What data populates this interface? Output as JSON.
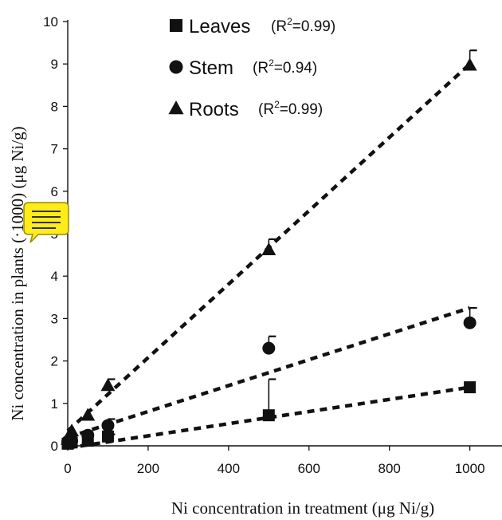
{
  "chart_data": {
    "type": "scatter",
    "xlabel": "Ni concentration in treatment (μg Ni/g)",
    "ylabel": "Ni concentration in plants (·1000) (μg Ni/g)",
    "xlim": [
      0,
      1080
    ],
    "ylim": [
      0,
      10
    ],
    "x_ticks": [
      "0",
      "200",
      "400",
      "600",
      "800",
      "1000"
    ],
    "y_ticks": [
      "0",
      "1",
      "2",
      "3",
      "4",
      "5",
      "6",
      "7",
      "8",
      "9",
      "10"
    ],
    "x_tick_values": [
      0,
      200,
      400,
      600,
      800,
      1000
    ],
    "y_tick_values": [
      0,
      1,
      2,
      3,
      4,
      5,
      6,
      7,
      8,
      9,
      10
    ],
    "legend_position": "top-right",
    "series": [
      {
        "name": "Leaves",
        "r2_prefix": "(R",
        "r2_suffix": "=0.99)",
        "marker": "square",
        "x": [
          0,
          10,
          50,
          100,
          500,
          1000
        ],
        "y": [
          0.05,
          0.08,
          0.12,
          0.22,
          0.72,
          1.38
        ],
        "err": [
          0,
          0,
          0,
          0.05,
          0.85,
          0
        ],
        "fit": [
          [
            0,
            -0.05
          ],
          [
            1000,
            1.38
          ]
        ]
      },
      {
        "name": "Stem",
        "r2_prefix": "(R",
        "r2_suffix": "=0.94)",
        "marker": "circle",
        "x": [
          0,
          10,
          50,
          100,
          500,
          1000
        ],
        "y": [
          0.1,
          0.12,
          0.25,
          0.48,
          2.3,
          2.9
        ],
        "err": [
          0,
          0,
          0,
          0.15,
          0.28,
          0.35
        ],
        "fit": [
          [
            0,
            0.2
          ],
          [
            1000,
            3.25
          ]
        ]
      },
      {
        "name": "Roots",
        "r2_prefix": "(R",
        "r2_suffix": "=0.99)",
        "marker": "triangle",
        "x": [
          0,
          10,
          50,
          100,
          500,
          1000
        ],
        "y": [
          0.15,
          0.35,
          0.72,
          1.42,
          4.62,
          8.97
        ],
        "err": [
          0,
          0,
          0,
          0.15,
          0.25,
          0.35
        ],
        "fit": [
          [
            0,
            0.35
          ],
          [
            1000,
            9.0
          ]
        ]
      }
    ],
    "r2_superscript": "2",
    "annotation_icon": "comment-note-icon"
  }
}
